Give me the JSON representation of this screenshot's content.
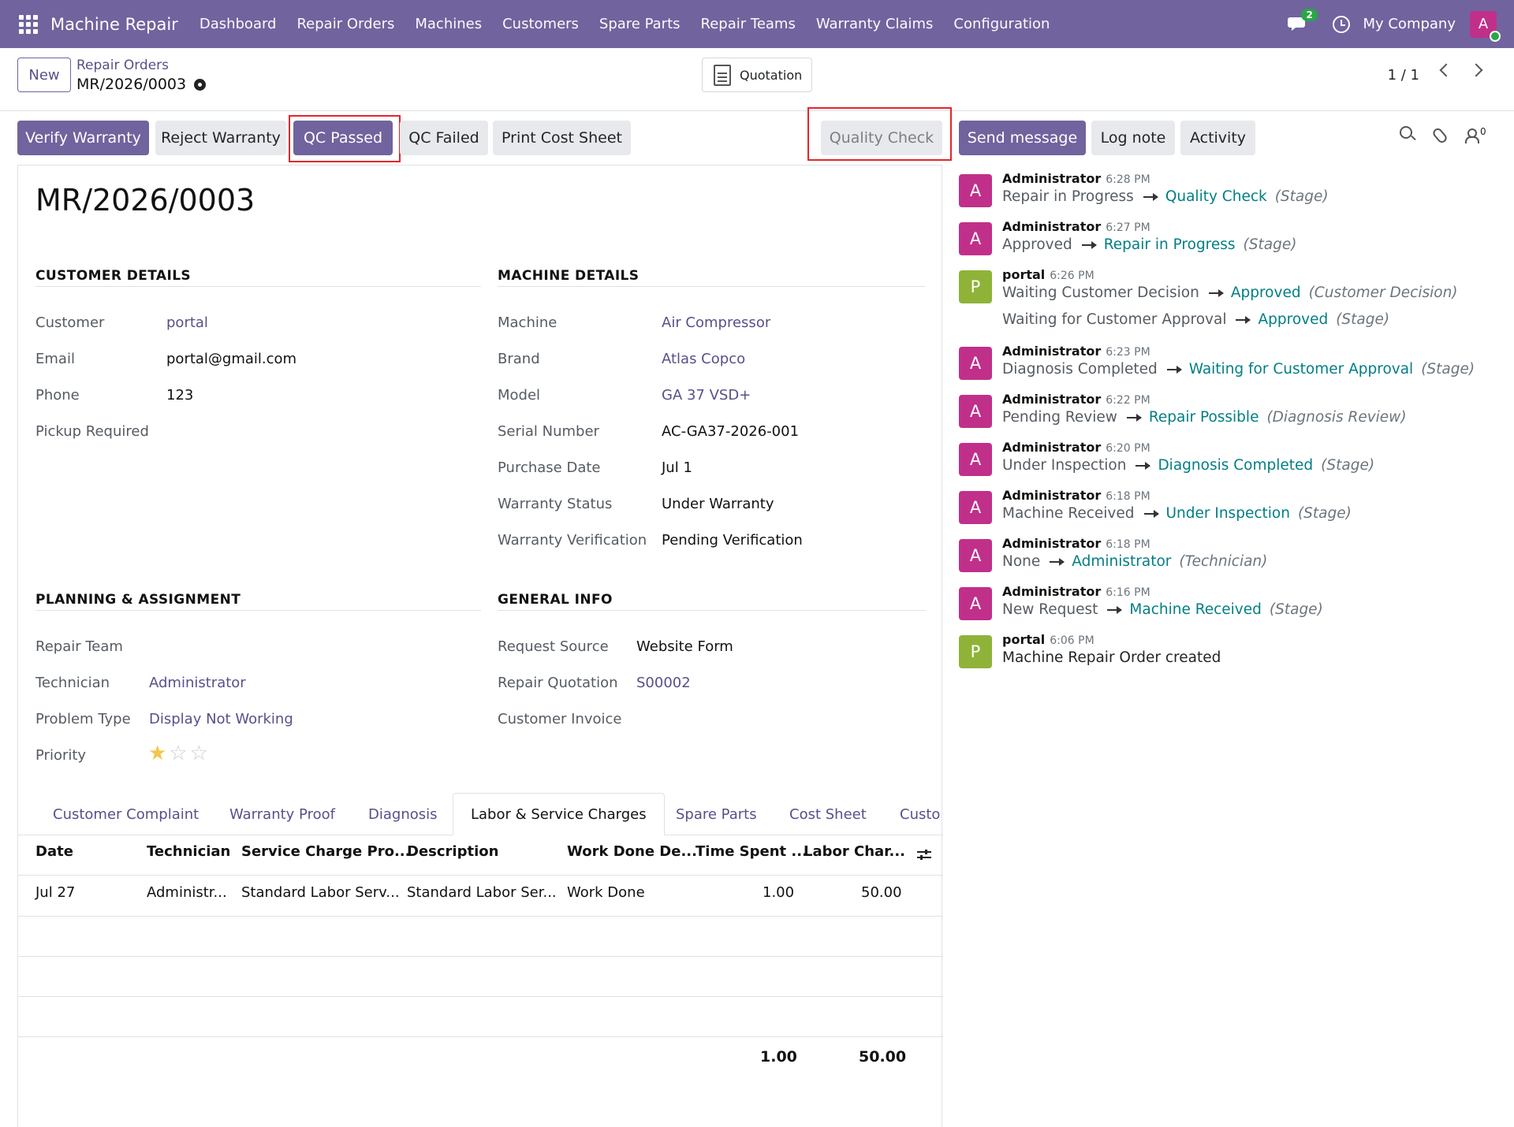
{
  "navbar": {
    "app_name": "Machine Repair",
    "menu": [
      "Dashboard",
      "Repair Orders",
      "Machines",
      "Customers",
      "Spare Parts",
      "Repair Teams",
      "Warranty Claims",
      "Configuration"
    ],
    "chat_count": "2",
    "company": "My Company",
    "user_initial": "A"
  },
  "control": {
    "new_label": "New",
    "breadcrumb": "Repair Orders",
    "record": "MR/2026/0003",
    "quotation_label": "Quotation",
    "pager": "1 / 1"
  },
  "actions": {
    "verify_warranty": "Verify Warranty",
    "reject_warranty": "Reject Warranty",
    "qc_passed": "QC Passed",
    "qc_failed": "QC Failed",
    "print_cost_sheet": "Print Cost Sheet",
    "stage": "Quality Check"
  },
  "chatter_buttons": {
    "send_message": "Send message",
    "log_note": "Log note",
    "activity": "Activity",
    "follower_count": "0"
  },
  "form": {
    "title": "MR/2026/0003",
    "customer_details": {
      "heading": "CUSTOMER DETAILS",
      "customer_label": "Customer",
      "customer": "portal",
      "email_label": "Email",
      "email": "portal@gmail.com",
      "phone_label": "Phone",
      "phone": "123",
      "pickup_label": "Pickup Required"
    },
    "machine_details": {
      "heading": "MACHINE DETAILS",
      "machine_label": "Machine",
      "machine": "Air Compressor",
      "brand_label": "Brand",
      "brand": "Atlas Copco",
      "model_label": "Model",
      "model": "GA 37 VSD+",
      "serial_label": "Serial Number",
      "serial": "AC-GA37-2026-001",
      "purchase_label": "Purchase Date",
      "purchase": "Jul 1",
      "warranty_status_label": "Warranty Status",
      "warranty_status": "Under Warranty",
      "warranty_verification_label": "Warranty Verification",
      "warranty_verification": "Pending Verification"
    },
    "planning": {
      "heading": "PLANNING & ASSIGNMENT",
      "team_label": "Repair Team",
      "technician_label": "Technician",
      "technician": "Administrator",
      "problem_label": "Problem Type",
      "problem": "Display Not Working",
      "priority_label": "Priority",
      "priority_stars": 1,
      "priority_max": 3
    },
    "general_info": {
      "heading": "GENERAL INFO",
      "source_label": "Request Source",
      "source": "Website Form",
      "quotation_label": "Repair Quotation",
      "quotation": "S00002",
      "invoice_label": "Customer Invoice"
    },
    "tabs": [
      "Customer Complaint",
      "Warranty Proof",
      "Diagnosis",
      "Labor & Service Charges",
      "Spare Parts",
      "Cost Sheet",
      "Custo"
    ],
    "active_tab": "Labor & Service Charges",
    "table": {
      "headers": [
        "Date",
        "Technician",
        "Service Charge Pro...",
        "Description",
        "Work Done De...",
        "Time Spent ...",
        "Labor Char..."
      ],
      "rows": [
        [
          "Jul 27",
          "Administr...",
          "Standard Labor Serv...",
          "Standard Labor Ser...",
          "Work Done",
          "1.00",
          "50.00"
        ]
      ],
      "total_time": "1.00",
      "total_labor": "50.00"
    }
  },
  "chatter": [
    {
      "author": "Administrator",
      "time": "6:28 PM",
      "avatar": "A",
      "lines": [
        {
          "old": "Repair in Progress",
          "new": "Quality Check",
          "field": "(Stage)"
        }
      ]
    },
    {
      "author": "Administrator",
      "time": "6:27 PM",
      "avatar": "A",
      "lines": [
        {
          "old": "Approved",
          "new": "Repair in Progress",
          "field": "(Stage)"
        }
      ]
    },
    {
      "author": "portal",
      "time": "6:26 PM",
      "avatar": "P",
      "lines": [
        {
          "old": "Waiting Customer Decision",
          "new": "Approved",
          "field": "(Customer Decision)"
        },
        {
          "old": "Waiting for Customer Approval",
          "new": "Approved",
          "field": "(Stage)"
        }
      ]
    },
    {
      "author": "Administrator",
      "time": "6:23 PM",
      "avatar": "A",
      "lines": [
        {
          "old": "Diagnosis Completed",
          "new": "Waiting for Customer Approval",
          "field": "(Stage)"
        }
      ]
    },
    {
      "author": "Administrator",
      "time": "6:22 PM",
      "avatar": "A",
      "lines": [
        {
          "old": "Pending Review",
          "new": "Repair Possible",
          "field": "(Diagnosis Review)"
        }
      ]
    },
    {
      "author": "Administrator",
      "time": "6:20 PM",
      "avatar": "A",
      "lines": [
        {
          "old": "Under Inspection",
          "new": "Diagnosis Completed",
          "field": "(Stage)"
        }
      ]
    },
    {
      "author": "Administrator",
      "time": "6:18 PM",
      "avatar": "A",
      "lines": [
        {
          "old": "Machine Received",
          "new": "Under Inspection",
          "field": "(Stage)"
        }
      ]
    },
    {
      "author": "Administrator",
      "time": "6:18 PM",
      "avatar": "A",
      "lines": [
        {
          "old": "None",
          "new": "Administrator",
          "field": "(Technician)"
        }
      ]
    },
    {
      "author": "Administrator",
      "time": "6:16 PM",
      "avatar": "A",
      "lines": [
        {
          "old": "New Request",
          "new": "Machine Received",
          "field": "(Stage)"
        }
      ]
    },
    {
      "author": "portal",
      "time": "6:06 PM",
      "avatar": "P",
      "body": "Machine Repair Order created"
    }
  ],
  "colors": {
    "brand": "#71639e",
    "avatar_admin": "#c0308a",
    "avatar_portal": "#8fb339",
    "link_new": "#017e84",
    "highlight": "#e3262b"
  }
}
